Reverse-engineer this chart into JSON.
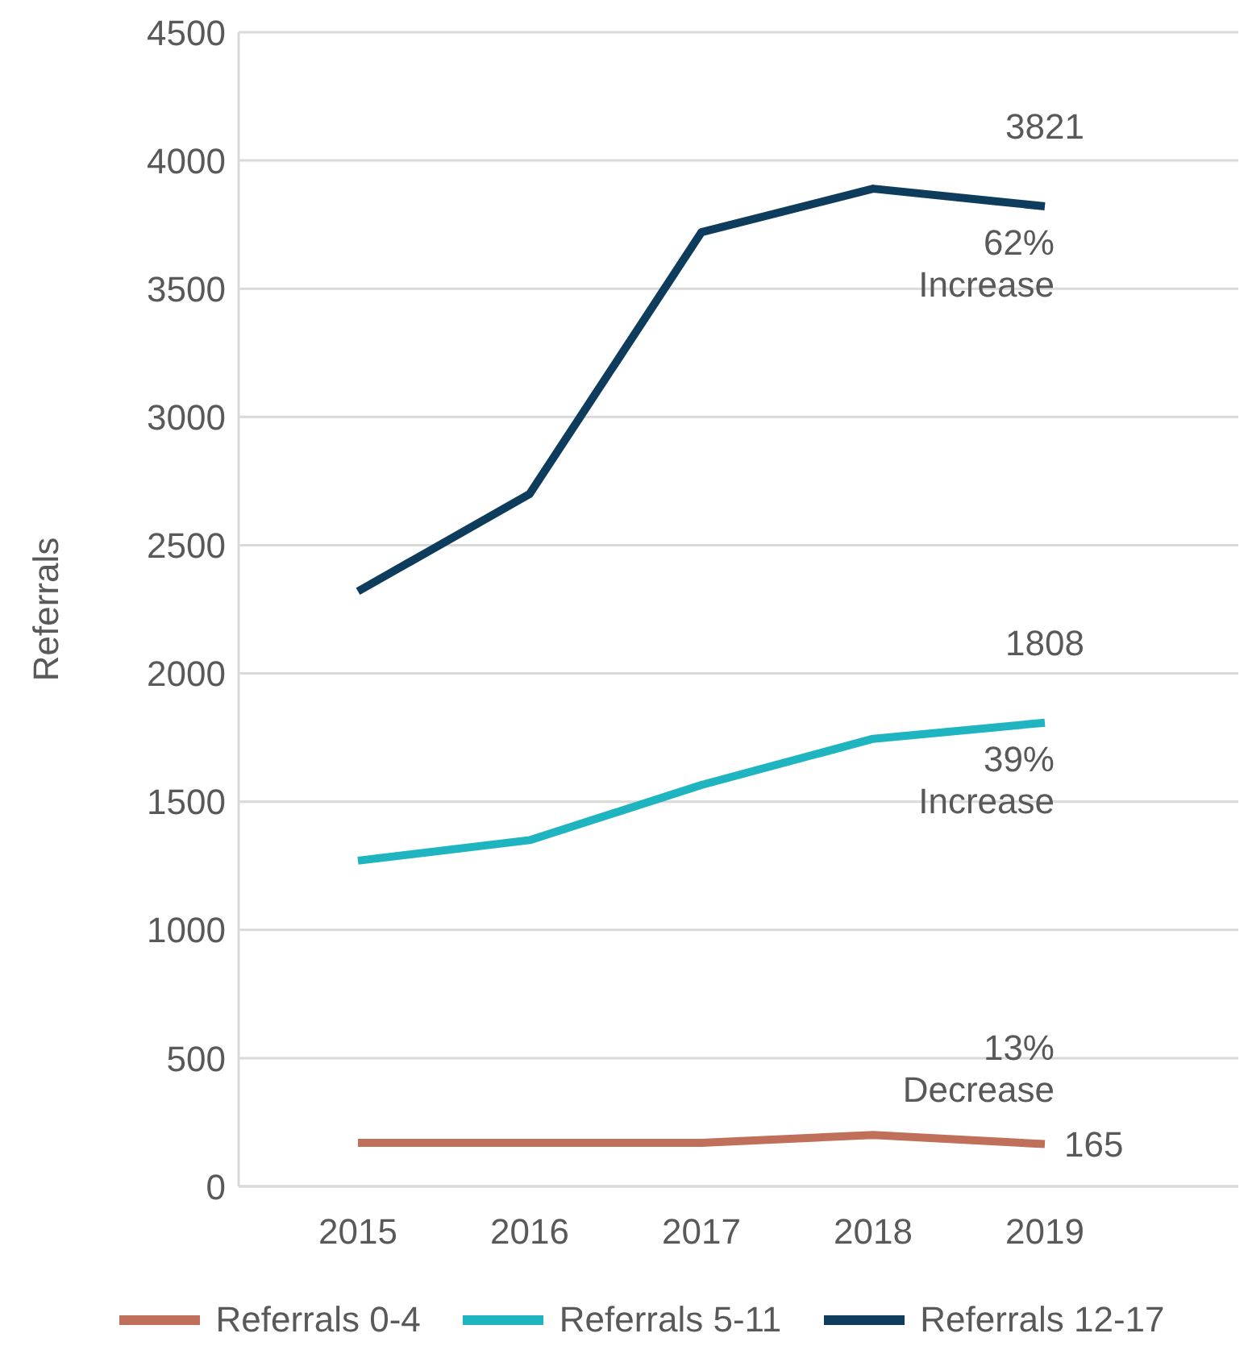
{
  "chart_data": {
    "type": "line",
    "ylabel": "Referrals",
    "categories": [
      "2015",
      "2016",
      "2017",
      "2018",
      "2019"
    ],
    "series": [
      {
        "name": "Referrals 0-4",
        "color": "#c0705a",
        "values": [
          170,
          170,
          170,
          200,
          165
        ],
        "value_labels": [
          null,
          null,
          null,
          null,
          "165"
        ]
      },
      {
        "name": "Referrals 5-11",
        "color": "#1fb5c0",
        "values": [
          1270,
          1350,
          1565,
          1745,
          1808
        ],
        "value_labels": [
          null,
          null,
          null,
          null,
          "1808"
        ]
      },
      {
        "name": "Referrals 12-17",
        "color": "#0e3c5c",
        "values": [
          2320,
          2700,
          3720,
          3890,
          3821
        ],
        "value_labels": [
          null,
          null,
          null,
          null,
          "3821"
        ]
      }
    ],
    "ylim": [
      0,
      4500
    ],
    "yticks": [
      0,
      500,
      1000,
      1500,
      2000,
      2500,
      3000,
      3500,
      4000,
      4500
    ],
    "grid": "y",
    "legend": "bottom",
    "marker": "none",
    "line_style": "solid",
    "annotations": [
      "62%\nIncrease",
      "39%\nIncrease",
      "13%\nDecrease"
    ]
  }
}
